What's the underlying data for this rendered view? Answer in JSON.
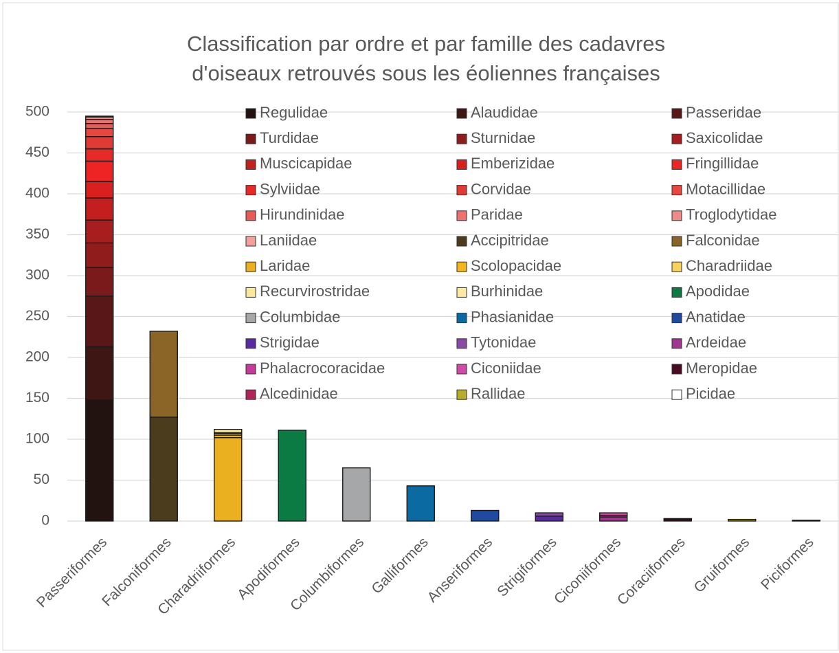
{
  "chart_data": {
    "type": "stacked_bar",
    "title": [
      "Classification par ordre et par famille des cadavres",
      "d'oiseaux retrouvés sous les éoliennes françaises"
    ],
    "categories": [
      "Passeriformes",
      "Falconiformes",
      "Charadriiformes",
      "Apodiformes",
      "Columbiformes",
      "Galliformes",
      "Anseriformes",
      "Strigiformes",
      "Ciconiiformes",
      "Coraciiformes",
      "Gruiformes",
      "Piciformes"
    ],
    "ylim": [
      0,
      500
    ],
    "yticks": [
      0,
      50,
      100,
      150,
      200,
      250,
      300,
      350,
      400,
      450,
      500
    ],
    "grid": true,
    "legend": "top-right",
    "series": [
      {
        "name": "Regulidae",
        "color": "#221310",
        "values": [
          148,
          0,
          0,
          0,
          0,
          0,
          0,
          0,
          0,
          0,
          0,
          0
        ]
      },
      {
        "name": "Alaudidae",
        "color": "#3e1614",
        "values": [
          65,
          0,
          0,
          0,
          0,
          0,
          0,
          0,
          0,
          0,
          0,
          0
        ]
      },
      {
        "name": "Passeridae",
        "color": "#5a1717",
        "values": [
          62,
          0,
          0,
          0,
          0,
          0,
          0,
          0,
          0,
          0,
          0,
          0
        ]
      },
      {
        "name": "Turdidae",
        "color": "#7a1a1a",
        "values": [
          35,
          0,
          0,
          0,
          0,
          0,
          0,
          0,
          0,
          0,
          0,
          0
        ]
      },
      {
        "name": "Sturnidae",
        "color": "#911c1c",
        "values": [
          30,
          0,
          0,
          0,
          0,
          0,
          0,
          0,
          0,
          0,
          0,
          0
        ]
      },
      {
        "name": "Saxicolidae",
        "color": "#a81e1e",
        "values": [
          28,
          0,
          0,
          0,
          0,
          0,
          0,
          0,
          0,
          0,
          0,
          0
        ]
      },
      {
        "name": "Muscicapidae",
        "color": "#c41f1f",
        "values": [
          27,
          0,
          0,
          0,
          0,
          0,
          0,
          0,
          0,
          0,
          0,
          0
        ]
      },
      {
        "name": "Emberizidae",
        "color": "#d9201f",
        "values": [
          20,
          0,
          0,
          0,
          0,
          0,
          0,
          0,
          0,
          0,
          0,
          0
        ]
      },
      {
        "name": "Fringillidae",
        "color": "#ee2424",
        "values": [
          25,
          0,
          0,
          0,
          0,
          0,
          0,
          0,
          0,
          0,
          0,
          0
        ]
      },
      {
        "name": "Sylviidae",
        "color": "#e62a28",
        "values": [
          15,
          0,
          0,
          0,
          0,
          0,
          0,
          0,
          0,
          0,
          0,
          0
        ]
      },
      {
        "name": "Corvidae",
        "color": "#e03a35",
        "values": [
          15,
          0,
          0,
          0,
          0,
          0,
          0,
          0,
          0,
          0,
          0,
          0
        ]
      },
      {
        "name": "Motacillidae",
        "color": "#e8463e",
        "values": [
          10,
          0,
          0,
          0,
          0,
          0,
          0,
          0,
          0,
          0,
          0,
          0
        ]
      },
      {
        "name": "Hirundinidae",
        "color": "#ea5a55",
        "values": [
          6,
          0,
          0,
          0,
          0,
          0,
          0,
          0,
          0,
          0,
          0,
          0
        ]
      },
      {
        "name": "Paridae",
        "color": "#ee7170",
        "values": [
          5,
          0,
          0,
          0,
          0,
          0,
          0,
          0,
          0,
          0,
          0,
          0
        ]
      },
      {
        "name": "Troglodytidae",
        "color": "#f08a88",
        "values": [
          3,
          0,
          0,
          0,
          0,
          0,
          0,
          0,
          0,
          0,
          0,
          0
        ]
      },
      {
        "name": "Laniidae",
        "color": "#f2a09e",
        "values": [
          1,
          0,
          0,
          0,
          0,
          0,
          0,
          0,
          0,
          0,
          0,
          0
        ]
      },
      {
        "name": "Accipitridae",
        "color": "#4a3c1c",
        "values": [
          0,
          127,
          0,
          0,
          0,
          0,
          0,
          0,
          0,
          0,
          0,
          0
        ]
      },
      {
        "name": "Falconidae",
        "color": "#8b6428",
        "values": [
          0,
          105,
          0,
          0,
          0,
          0,
          0,
          0,
          0,
          0,
          0,
          0
        ]
      },
      {
        "name": "Laridae",
        "color": "#eab020",
        "values": [
          0,
          0,
          102,
          0,
          0,
          0,
          0,
          0,
          0,
          0,
          0,
          0
        ]
      },
      {
        "name": "Scolopacidae",
        "color": "#f2b61f",
        "values": [
          0,
          0,
          3,
          0,
          0,
          0,
          0,
          0,
          0,
          0,
          0,
          0
        ]
      },
      {
        "name": "Charadriidae",
        "color": "#f7d25c",
        "values": [
          0,
          0,
          2,
          0,
          0,
          0,
          0,
          0,
          0,
          0,
          0,
          0
        ]
      },
      {
        "name": "Recurvirostridae",
        "color": "#fbe99a",
        "values": [
          0,
          0,
          1,
          0,
          0,
          0,
          0,
          0,
          0,
          0,
          0,
          0
        ]
      },
      {
        "name": "Burhinidae",
        "color": "#fbeaa0",
        "values": [
          0,
          0,
          4,
          0,
          0,
          0,
          0,
          0,
          0,
          0,
          0,
          0
        ]
      },
      {
        "name": "Apodidae",
        "color": "#0b7a43",
        "values": [
          0,
          0,
          0,
          111,
          0,
          0,
          0,
          0,
          0,
          0,
          0,
          0
        ]
      },
      {
        "name": "Columbidae",
        "color": "#a5a7a8",
        "values": [
          0,
          0,
          0,
          0,
          65,
          0,
          0,
          0,
          0,
          0,
          0,
          0
        ]
      },
      {
        "name": "Phasianidae",
        "color": "#0a6aa1",
        "values": [
          0,
          0,
          0,
          0,
          0,
          43,
          0,
          0,
          0,
          0,
          0,
          0
        ]
      },
      {
        "name": "Anatidae",
        "color": "#1f4aa0",
        "values": [
          0,
          0,
          0,
          0,
          0,
          0,
          13,
          0,
          0,
          0,
          0,
          0
        ]
      },
      {
        "name": "Strigidae",
        "color": "#5b2aa0",
        "values": [
          0,
          0,
          0,
          0,
          0,
          0,
          0,
          6,
          0,
          0,
          0,
          0
        ]
      },
      {
        "name": "Tytonidae",
        "color": "#8a4aa8",
        "values": [
          0,
          0,
          0,
          0,
          0,
          0,
          0,
          4,
          0,
          0,
          0,
          0
        ]
      },
      {
        "name": "Ardeidae",
        "color": "#a23590",
        "values": [
          0,
          0,
          0,
          0,
          0,
          0,
          0,
          0,
          5,
          0,
          0,
          0
        ]
      },
      {
        "name": "Phalacrocoracidae",
        "color": "#c73a9a",
        "values": [
          0,
          0,
          0,
          0,
          0,
          0,
          0,
          0,
          2,
          0,
          0,
          0
        ]
      },
      {
        "name": "Ciconiidae",
        "color": "#d24aa8",
        "values": [
          0,
          0,
          0,
          0,
          0,
          0,
          0,
          0,
          3,
          0,
          0,
          0
        ]
      },
      {
        "name": "Meropidae",
        "color": "#4a0a22",
        "values": [
          0,
          0,
          0,
          0,
          0,
          0,
          0,
          0,
          0,
          2,
          0,
          0
        ]
      },
      {
        "name": "Alcedinidae",
        "color": "#b0245a",
        "values": [
          0,
          0,
          0,
          0,
          0,
          0,
          0,
          0,
          0,
          1,
          0,
          0
        ]
      },
      {
        "name": "Rallidae",
        "color": "#b8ad2a",
        "values": [
          0,
          0,
          0,
          0,
          0,
          0,
          0,
          0,
          0,
          0,
          2,
          0
        ]
      },
      {
        "name": "Picidae",
        "color": "#ffffff",
        "values": [
          0,
          0,
          0,
          0,
          0,
          0,
          0,
          0,
          0,
          0,
          0,
          1
        ]
      }
    ]
  }
}
